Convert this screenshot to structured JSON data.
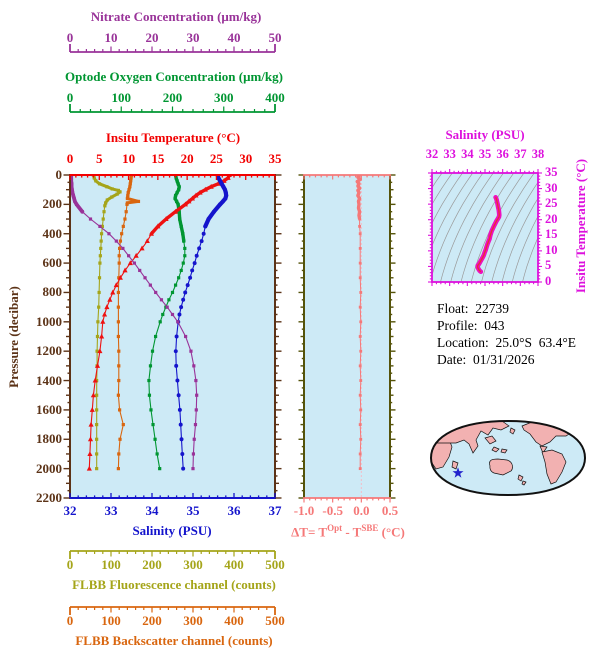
{
  "colors": {
    "plot_bg": "#cdeaf6",
    "nitrate": "#993399",
    "oxygen": "#009632",
    "temperature": "#ee1111",
    "temp_axis": "#f20000",
    "pressure": "#5c3317",
    "salinity": "#1414cc",
    "fluorescence": "#a5a51a",
    "backscatter": "#d9660f",
    "delta": "#f57878",
    "delta_border": "#55530a",
    "delta_zero_line": "#f2bcc8",
    "ts_magenta": "#dd11dd",
    "ts_curve": "#ee10c0",
    "ts_curve_core": "#e83030",
    "contour_gray": "#9a9a9a",
    "map_land": "#f2b1b1",
    "map_outline": "#111111",
    "star_blue": "#2222cc",
    "info_text": "#000000"
  },
  "axes": {
    "nitrate": {
      "label": "Nitrate Concentration (μm/kg)",
      "ticks": [
        "0",
        "10",
        "20",
        "30",
        "40",
        "50"
      ],
      "range": [
        0,
        50
      ],
      "minor_step": 2
    },
    "oxygen": {
      "label": "Optode Oxygen Concentration (μm/kg)",
      "ticks": [
        "0",
        "100",
        "200",
        "300",
        "400"
      ],
      "range": [
        0,
        400
      ],
      "minor_step": 20
    },
    "temperature": {
      "label": "Insitu Temperature (°C)",
      "ticks": [
        "0",
        "5",
        "10",
        "15",
        "20",
        "25",
        "30",
        "35"
      ],
      "range": [
        0,
        35
      ],
      "minor_step": 1
    },
    "pressure": {
      "label": "Pressure (decibar)",
      "ticks": [
        "0",
        "200",
        "400",
        "600",
        "800",
        "1000",
        "1200",
        "1400",
        "1600",
        "1800",
        "2000",
        "2200"
      ],
      "range": [
        0,
        2200
      ],
      "minor_step": 50
    },
    "salinity": {
      "label": "Salinity (PSU)",
      "ticks": [
        "32",
        "33",
        "34",
        "35",
        "36",
        "37"
      ],
      "range": [
        32,
        37
      ],
      "minor_step": 0.2
    },
    "fluorescence": {
      "label": "FLBB Fluorescence channel (counts)",
      "ticks": [
        "0",
        "100",
        "200",
        "300",
        "400",
        "500"
      ],
      "range": [
        0,
        500
      ],
      "minor_step": 20
    },
    "backscatter": {
      "label": "FLBB Backscatter channel (counts)",
      "ticks": [
        "0",
        "100",
        "200",
        "300",
        "400",
        "500"
      ],
      "range": [
        0,
        500
      ],
      "minor_step": 20
    },
    "delta": {
      "label_parts": {
        "p1": "ΔT= T",
        "sup1": "Opt",
        "p2": " - T",
        "sup2": "SBE",
        "p3": " (°C)"
      },
      "ticks": [
        "-1.0",
        "-0.5",
        "0.0",
        "0.5"
      ],
      "range": [
        -1.0,
        0.5
      ],
      "minor_step": 0.1
    },
    "ts_salinity": {
      "label": "Salinity (PSU)",
      "ticks": [
        "32",
        "33",
        "34",
        "35",
        "36",
        "37",
        "38"
      ],
      "range": [
        32,
        38
      ],
      "minor_step": 0.25
    },
    "ts_temperature": {
      "label": "Insitu Temperature (°C)",
      "ticks": [
        "35",
        "30",
        "25",
        "20",
        "15",
        "10",
        "5",
        "0"
      ],
      "range": [
        0,
        35
      ],
      "minor_step": 1
    }
  },
  "info": {
    "lines": [
      {
        "label": "Float:",
        "value": "22739"
      },
      {
        "label": "Profile:",
        "value": "043"
      },
      {
        "label": "Location:",
        "value": "25.0°S  63.4°E"
      },
      {
        "label": "Date:",
        "value": "01/31/2026"
      }
    ]
  },
  "map": {
    "marker": "blue-star",
    "marker_color": "#2222cc",
    "land_color": "#f2b1b1",
    "ocean_color": "#cdeaf6"
  },
  "chart_data": {
    "type": "line",
    "description": "Argo float vertical profiles plotted against pressure (depth increases downward)",
    "y_axis": {
      "label": "Pressure (decibar)",
      "range": [
        0,
        2200
      ],
      "direction": "down"
    },
    "series": [
      {
        "name": "Insitu Temperature",
        "units": "°C",
        "color": "#ee1111",
        "x_range": [
          0,
          35
        ],
        "marker": "triangle",
        "pressures": [
          0,
          20,
          40,
          60,
          80,
          100,
          120,
          140,
          160,
          180,
          200,
          250,
          300,
          350,
          400,
          450,
          500,
          550,
          600,
          650,
          700,
          750,
          800,
          850,
          900,
          950,
          1000,
          1100,
          1200,
          1300,
          1400,
          1500,
          1600,
          1700,
          1800,
          1900,
          2000
        ],
        "values": [
          27.2,
          27.0,
          26.3,
          25.3,
          24.1,
          23.1,
          22.2,
          21.5,
          20.9,
          20.3,
          19.7,
          18.0,
          16.4,
          15.0,
          13.9,
          13.2,
          12.3,
          11.3,
          10.3,
          9.4,
          8.6,
          7.9,
          7.3,
          6.8,
          6.3,
          5.9,
          5.6,
          5.4,
          5.1,
          4.7,
          4.3,
          4.0,
          3.8,
          3.6,
          3.5,
          3.4,
          3.3
        ]
      },
      {
        "name": "Salinity",
        "units": "PSU",
        "color": "#1414cc",
        "x_range": [
          32,
          37
        ],
        "marker": "circle",
        "pressures": [
          0,
          20,
          40,
          60,
          80,
          100,
          120,
          140,
          160,
          180,
          200,
          250,
          300,
          350,
          400,
          450,
          500,
          550,
          600,
          650,
          700,
          750,
          800,
          850,
          900,
          950,
          1000,
          1100,
          1200,
          1300,
          1400,
          1500,
          1600,
          1700,
          1800,
          1900,
          2000
        ],
        "values": [
          35.6,
          35.62,
          35.66,
          35.7,
          35.74,
          35.78,
          35.8,
          35.81,
          35.79,
          35.73,
          35.66,
          35.51,
          35.38,
          35.3,
          35.26,
          35.21,
          35.15,
          35.09,
          35.04,
          34.98,
          34.93,
          34.87,
          34.81,
          34.76,
          34.71,
          34.67,
          34.64,
          34.6,
          34.58,
          34.59,
          34.62,
          34.65,
          34.68,
          34.7,
          34.72,
          34.74,
          34.76
        ]
      },
      {
        "name": "Optode Oxygen Concentration",
        "units": "μm/kg",
        "color": "#009632",
        "x_range": [
          0,
          400
        ],
        "marker": "square",
        "pressures": [
          0,
          20,
          40,
          60,
          80,
          100,
          120,
          140,
          160,
          180,
          200,
          250,
          300,
          350,
          400,
          450,
          500,
          550,
          600,
          650,
          700,
          750,
          800,
          850,
          900,
          950,
          1000,
          1100,
          1200,
          1300,
          1400,
          1500,
          1600,
          1700,
          1800,
          1900,
          2000
        ],
        "values": [
          206,
          207,
          209,
          211,
          213,
          212,
          209,
          206,
          205,
          208,
          211,
          213,
          214,
          217,
          220,
          222,
          224,
          224,
          221,
          217,
          212,
          206,
          200,
          193,
          187,
          181,
          176,
          167,
          161,
          157,
          154,
          155,
          158,
          162,
          166,
          170,
          175
        ]
      },
      {
        "name": "Nitrate Concentration",
        "units": "μm/kg",
        "color": "#993399",
        "x_range": [
          0,
          50
        ],
        "marker": "square",
        "pressures": [
          0,
          20,
          40,
          60,
          80,
          100,
          120,
          140,
          160,
          180,
          200,
          250,
          300,
          350,
          400,
          450,
          500,
          550,
          600,
          650,
          700,
          750,
          800,
          850,
          900,
          950,
          1000,
          1100,
          1200,
          1300,
          1400,
          1500,
          1600,
          1700,
          1800,
          1900,
          2000
        ],
        "values": [
          0.3,
          0.3,
          0.3,
          0.4,
          0.4,
          0.5,
          0.6,
          0.8,
          1.0,
          1.2,
          1.6,
          3.0,
          5.0,
          7.3,
          9.5,
          11.3,
          12.9,
          14.3,
          15.7,
          17.0,
          18.3,
          19.6,
          20.9,
          22.3,
          23.7,
          25.0,
          26.3,
          28.2,
          29.5,
          30.2,
          30.7,
          30.9,
          30.8,
          30.6,
          30.3,
          30.1,
          30.0
        ]
      },
      {
        "name": "FLBB Fluorescence channel",
        "units": "counts",
        "color": "#a5a51a",
        "x_range": [
          0,
          500
        ],
        "marker": "square",
        "pressures": [
          0,
          20,
          40,
          60,
          80,
          95,
          105,
          115,
          130,
          150,
          170,
          190,
          210,
          250,
          300,
          350,
          400,
          450,
          500,
          550,
          600,
          700,
          800,
          900,
          1000,
          1100,
          1200,
          1300,
          1400,
          1500,
          1600,
          1700,
          1800,
          1900,
          2000
        ],
        "values": [
          57,
          59,
          63,
          72,
          90,
          103,
          118,
          122,
          115,
          102,
          91,
          87,
          85,
          83,
          81,
          79,
          77,
          76,
          75,
          74,
          73,
          72,
          71,
          70,
          68,
          67,
          66,
          66,
          65,
          65,
          65,
          65,
          65,
          65,
          65
        ]
      },
      {
        "name": "FLBB Backscatter channel",
        "units": "counts",
        "color": "#d9660f",
        "x_range": [
          0,
          500
        ],
        "marker": "square",
        "pressures": [
          0,
          20,
          40,
          60,
          80,
          100,
          120,
          140,
          160,
          180,
          190,
          200,
          250,
          300,
          350,
          400,
          450,
          500,
          550,
          600,
          700,
          800,
          900,
          1000,
          1100,
          1200,
          1300,
          1400,
          1500,
          1600,
          1700,
          1800,
          1900,
          2000
        ],
        "values": [
          150,
          149,
          148,
          147,
          146,
          144,
          142,
          141,
          140,
          167,
          140,
          139,
          137,
          134,
          130,
          126,
          123,
          121,
          120,
          120,
          119,
          118,
          118,
          118,
          118,
          119,
          119,
          119,
          118,
          121,
          130,
          122,
          119,
          118
        ]
      }
    ],
    "delta_panel": {
      "x_label": "ΔT= T^Opt - T^SBE (°C)",
      "x_range": [
        -1.0,
        0.5
      ],
      "pressures": [
        0,
        15,
        30,
        45,
        60,
        75,
        90,
        105,
        120,
        140,
        160,
        180,
        200,
        225,
        250,
        275,
        300,
        350,
        400,
        500,
        600,
        700,
        800,
        900,
        1000,
        1100,
        1200,
        1300,
        1400,
        1500,
        1600,
        1700,
        1800,
        1900,
        2000
      ],
      "values": [
        -0.03,
        -0.06,
        -0.02,
        -0.07,
        -0.04,
        -0.06,
        -0.03,
        -0.06,
        -0.04,
        -0.06,
        -0.03,
        -0.05,
        -0.04,
        -0.05,
        -0.03,
        -0.04,
        -0.03,
        -0.03,
        -0.02,
        -0.02,
        -0.02,
        -0.02,
        -0.01,
        -0.02,
        -0.01,
        -0.02,
        -0.01,
        -0.02,
        -0.01,
        -0.02,
        -0.01,
        -0.02,
        -0.01,
        -0.02,
        -0.02
      ]
    },
    "ts_panel": {
      "x_label": "Salinity (PSU)",
      "x_range": [
        32,
        38
      ],
      "y_label": "Insitu Temperature (°C)",
      "y_range": [
        0,
        35
      ],
      "note": "T-S curve formed from (salinity, temperature) pairs of the profile; thin gray isopycnal contours in background"
    }
  }
}
